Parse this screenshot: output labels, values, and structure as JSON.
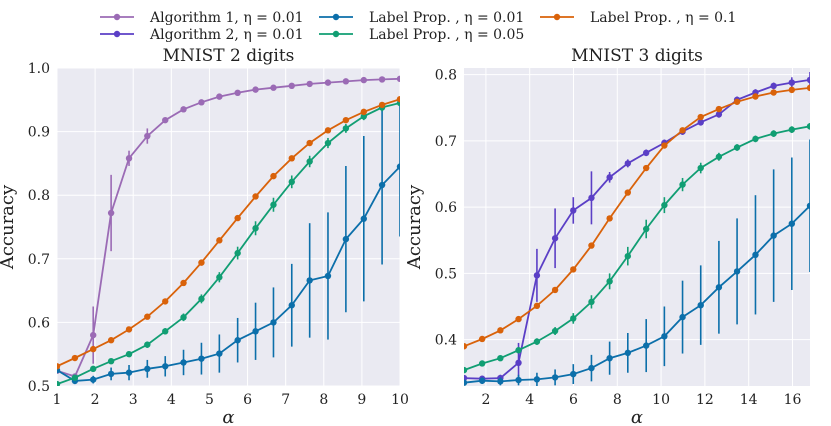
{
  "chart_data": [
    {
      "type": "line",
      "title": "MNIST 2 digits",
      "xlabel": "α",
      "ylabel": "Accuracy",
      "xlim": [
        1,
        10
      ],
      "ylim": [
        0.5,
        1.0
      ],
      "xticks": [
        1,
        2,
        3,
        4,
        5,
        6,
        7,
        8,
        9,
        10
      ],
      "yticks": [
        0.5,
        0.6,
        0.7,
        0.8,
        0.9,
        1.0
      ],
      "ytick_labels": [
        "0.5",
        "0.6",
        "0.7",
        "0.8",
        "0.9",
        "1.0"
      ],
      "x": [
        1.0,
        1.47,
        1.95,
        2.42,
        2.89,
        3.37,
        3.84,
        4.32,
        4.79,
        5.26,
        5.74,
        6.21,
        6.68,
        7.16,
        7.63,
        8.11,
        8.58,
        9.05,
        9.53,
        10.0
      ],
      "series": [
        {
          "name": "Algorithm 1",
          "color": "#9b6bb5",
          "values": [
            0.524,
            0.515,
            0.58,
            0.772,
            0.858,
            0.893,
            0.918,
            0.935,
            0.946,
            0.955,
            0.961,
            0.966,
            0.969,
            0.972,
            0.975,
            0.977,
            0.979,
            0.981,
            0.982,
            0.983
          ],
          "err": [
            0.004,
            0.004,
            0.045,
            0.06,
            0.012,
            0.012,
            0.004,
            0.003,
            0.003,
            0.002,
            0.002,
            0.002,
            0.002,
            0.002,
            0.002,
            0.002,
            0.002,
            0.002,
            0.002,
            0.002
          ]
        },
        {
          "name": "Label Prop. η=0.01",
          "color": "#0c6faa",
          "values": [
            0.525,
            0.508,
            0.51,
            0.519,
            0.521,
            0.527,
            0.531,
            0.537,
            0.543,
            0.551,
            0.572,
            0.586,
            0.6,
            0.627,
            0.666,
            0.673,
            0.731,
            0.763,
            0.816,
            0.845
          ],
          "err": [
            0.004,
            0.005,
            0.006,
            0.01,
            0.012,
            0.014,
            0.016,
            0.02,
            0.025,
            0.03,
            0.035,
            0.045,
            0.055,
            0.065,
            0.09,
            0.1,
            0.115,
            0.13,
            0.125,
            0.11
          ]
        },
        {
          "name": "Label Prop. η=0.05",
          "color": "#119e73",
          "values": [
            0.503,
            0.513,
            0.527,
            0.539,
            0.55,
            0.565,
            0.586,
            0.608,
            0.637,
            0.671,
            0.709,
            0.748,
            0.785,
            0.821,
            0.853,
            0.882,
            0.905,
            0.924,
            0.938,
            0.945
          ],
          "err": [
            0.003,
            0.003,
            0.004,
            0.004,
            0.004,
            0.005,
            0.005,
            0.006,
            0.007,
            0.008,
            0.01,
            0.011,
            0.011,
            0.01,
            0.009,
            0.008,
            0.007,
            0.006,
            0.006,
            0.005
          ]
        },
        {
          "name": "Label Prop. η=0.1",
          "color": "#d9620a",
          "values": [
            0.531,
            0.544,
            0.558,
            0.572,
            0.589,
            0.609,
            0.633,
            0.662,
            0.694,
            0.729,
            0.764,
            0.798,
            0.83,
            0.858,
            0.882,
            0.902,
            0.918,
            0.931,
            0.942,
            0.951
          ],
          "err": [
            0.002,
            0.002,
            0.002,
            0.002,
            0.002,
            0.003,
            0.003,
            0.003,
            0.003,
            0.003,
            0.003,
            0.003,
            0.003,
            0.003,
            0.003,
            0.003,
            0.003,
            0.003,
            0.003,
            0.003
          ]
        }
      ]
    },
    {
      "type": "line",
      "title": "MNIST 3 digits",
      "xlabel": "α",
      "ylabel": "Accuracy",
      "xlim": [
        1,
        16.8
      ],
      "ylim": [
        0.33,
        0.81
      ],
      "xticks": [
        2,
        4,
        6,
        8,
        10,
        12,
        14,
        16
      ],
      "yticks": [
        0.4,
        0.5,
        0.6,
        0.7,
        0.8
      ],
      "ytick_labels": [
        "0.4",
        "0.5",
        "0.6",
        "0.7",
        "0.8"
      ],
      "x": [
        1.0,
        1.83,
        2.66,
        3.49,
        4.33,
        5.16,
        5.99,
        6.82,
        7.65,
        8.48,
        9.32,
        10.15,
        10.98,
        11.81,
        12.64,
        13.47,
        14.31,
        15.14,
        15.97,
        16.8
      ],
      "series": [
        {
          "name": "Algorithm 2",
          "color": "#5b3fc6",
          "values": [
            0.342,
            0.341,
            0.342,
            0.365,
            0.497,
            0.553,
            0.595,
            0.614,
            0.645,
            0.666,
            0.682,
            0.697,
            0.714,
            0.728,
            0.74,
            0.762,
            0.773,
            0.783,
            0.788,
            0.792
          ],
          "err": [
            0.003,
            0.003,
            0.005,
            0.03,
            0.04,
            0.045,
            0.02,
            0.04,
            0.008,
            0.006,
            0.005,
            0.005,
            0.005,
            0.005,
            0.005,
            0.005,
            0.005,
            0.005,
            0.008,
            0.012
          ]
        },
        {
          "name": "Label Prop. η=0.01",
          "color": "#0c6faa",
          "values": [
            0.335,
            0.338,
            0.337,
            0.339,
            0.34,
            0.343,
            0.348,
            0.357,
            0.372,
            0.38,
            0.391,
            0.405,
            0.434,
            0.452,
            0.479,
            0.503,
            0.528,
            0.557,
            0.575,
            0.602
          ],
          "err": [
            0.003,
            0.005,
            0.006,
            0.008,
            0.01,
            0.012,
            0.015,
            0.02,
            0.025,
            0.03,
            0.04,
            0.045,
            0.055,
            0.06,
            0.07,
            0.08,
            0.09,
            0.1,
            0.1,
            0.1
          ]
        },
        {
          "name": "Label Prop. η=0.05",
          "color": "#119e73",
          "values": [
            0.354,
            0.364,
            0.372,
            0.384,
            0.397,
            0.413,
            0.432,
            0.457,
            0.488,
            0.526,
            0.567,
            0.603,
            0.634,
            0.659,
            0.676,
            0.69,
            0.703,
            0.711,
            0.717,
            0.722
          ],
          "err": [
            0.003,
            0.003,
            0.004,
            0.004,
            0.005,
            0.006,
            0.008,
            0.01,
            0.012,
            0.014,
            0.014,
            0.012,
            0.01,
            0.008,
            0.006,
            0.005,
            0.005,
            0.005,
            0.005,
            0.005
          ]
        },
        {
          "name": "Label Prop. η=0.1",
          "color": "#d9620a",
          "values": [
            0.39,
            0.401,
            0.414,
            0.431,
            0.451,
            0.475,
            0.506,
            0.542,
            0.583,
            0.622,
            0.659,
            0.693,
            0.716,
            0.736,
            0.748,
            0.759,
            0.767,
            0.773,
            0.777,
            0.78
          ],
          "err": [
            0.002,
            0.002,
            0.002,
            0.002,
            0.002,
            0.003,
            0.003,
            0.003,
            0.003,
            0.003,
            0.003,
            0.003,
            0.003,
            0.003,
            0.003,
            0.003,
            0.003,
            0.003,
            0.003,
            0.003
          ]
        }
      ]
    }
  ],
  "legend": {
    "placement": "top-center",
    "entries": [
      {
        "label": "Algorithm 1, η = 0.01",
        "color": "#9b6bb5"
      },
      {
        "label": "Algorithm 2, η = 0.01",
        "color": "#5b3fc6"
      },
      {
        "label": "Label Prop. , η = 0.01",
        "color": "#0c6faa"
      },
      {
        "label": "Label Prop. , η = 0.05",
        "color": "#119e73"
      },
      {
        "label": "Label Prop. , η = 0.1",
        "color": "#d9620a"
      }
    ]
  },
  "style": {
    "panel_bg": "#eaeaf2",
    "grid_color": "#ffffff",
    "text_color": "#222222"
  }
}
